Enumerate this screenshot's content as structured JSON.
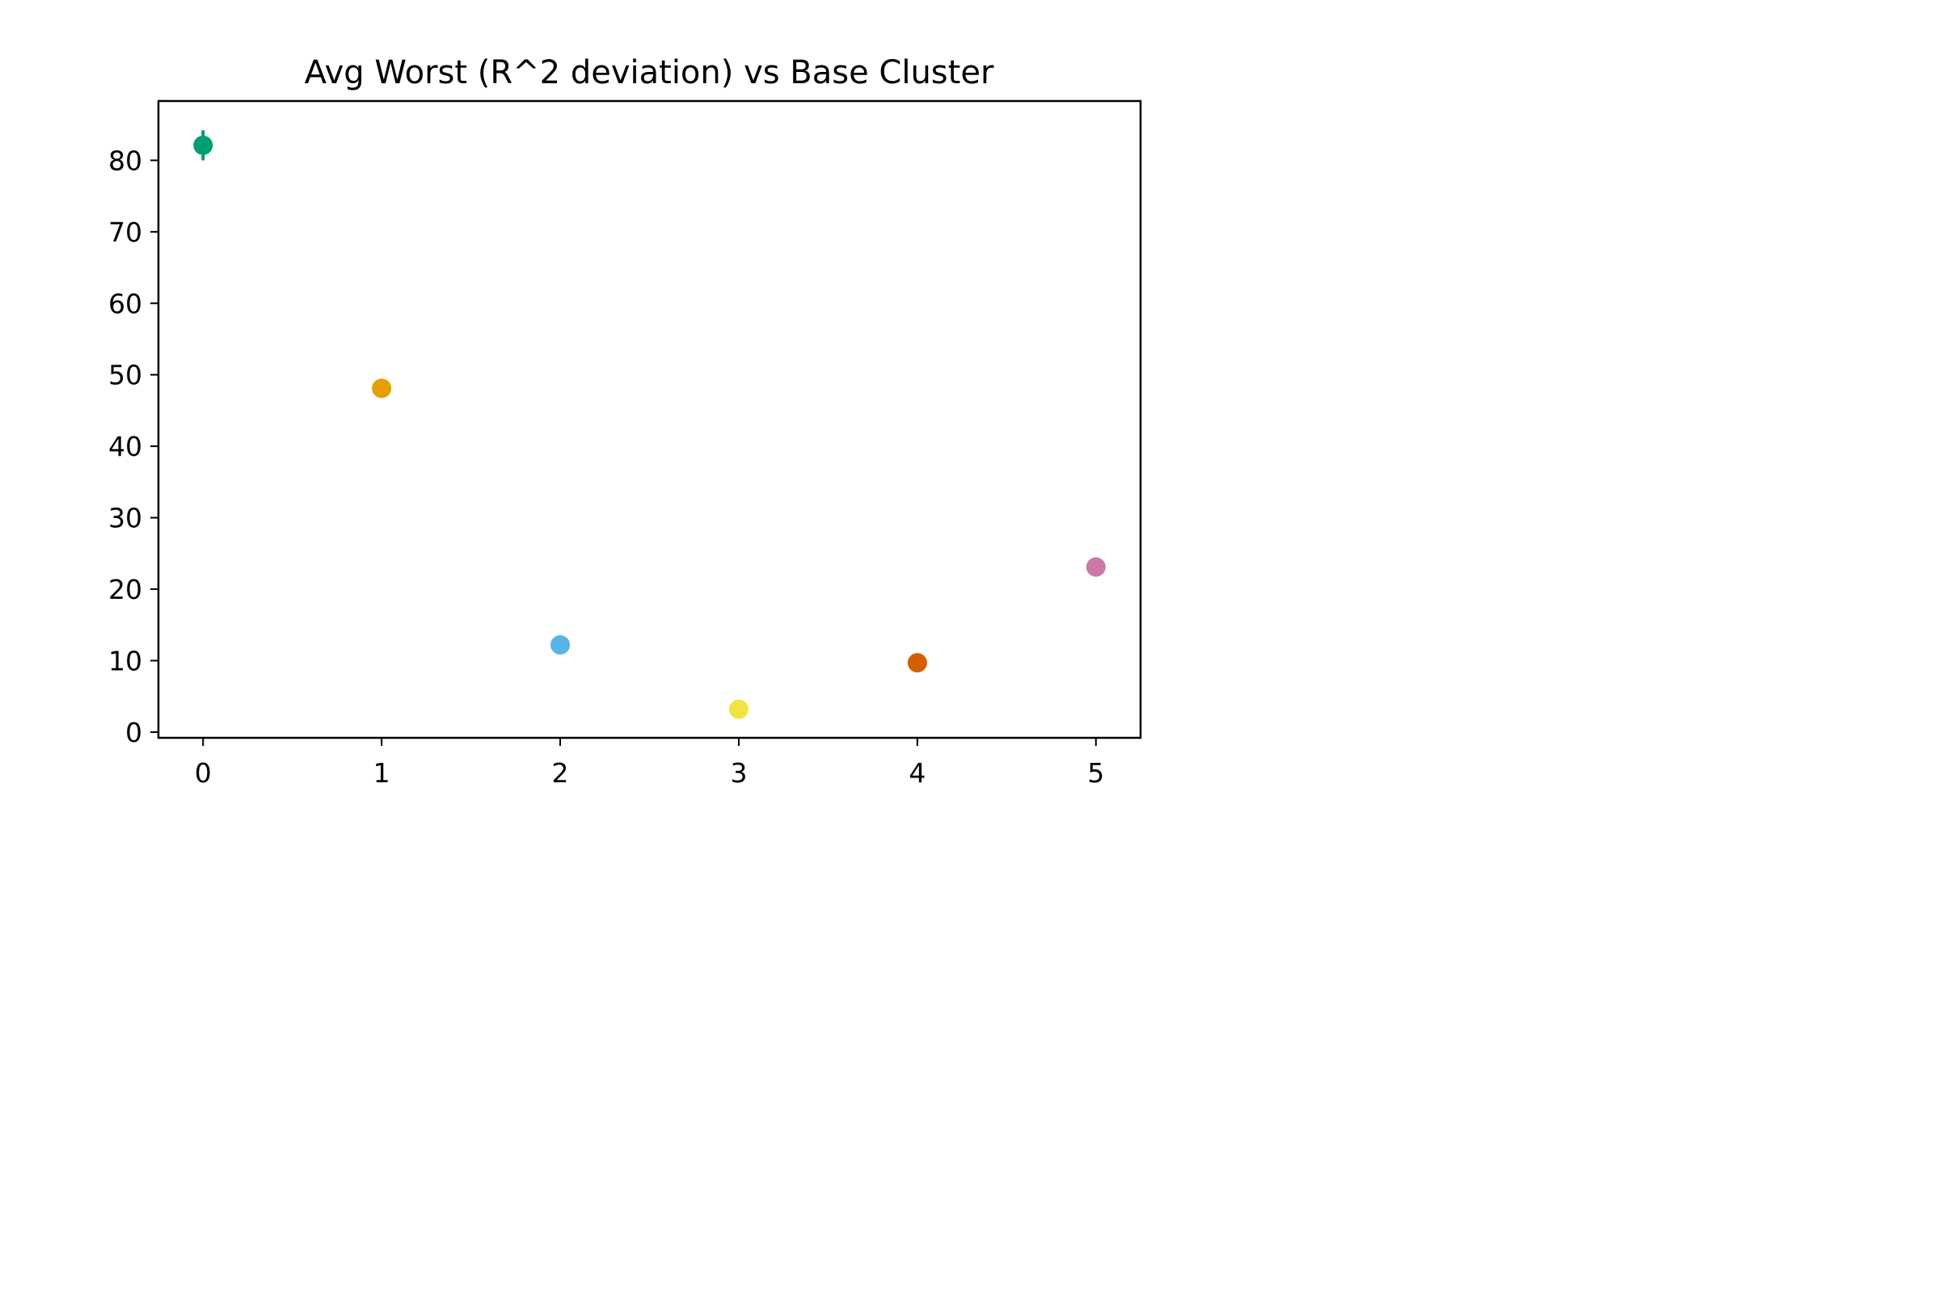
{
  "chart_data": {
    "type": "scatter",
    "title": "Avg Worst (R^2 deviation) vs Base Cluster",
    "xlabel": "",
    "ylabel": "",
    "xlim": [
      -0.25,
      5.25
    ],
    "ylim": [
      -0.8,
      88.3
    ],
    "x_ticks": [
      0,
      1,
      2,
      3,
      4,
      5
    ],
    "y_ticks": [
      0,
      10,
      20,
      30,
      40,
      50,
      60,
      70,
      80
    ],
    "x_tick_labels": [
      "0",
      "1",
      "2",
      "3",
      "4",
      "5"
    ],
    "y_tick_labels": [
      "0",
      "10",
      "20",
      "30",
      "40",
      "50",
      "60",
      "70",
      "80"
    ],
    "grid": false,
    "legend": "none",
    "points": [
      {
        "x": 0,
        "y": 82.1,
        "error": 2.1,
        "color": "#009e73"
      },
      {
        "x": 1,
        "y": 48.1,
        "error": 0,
        "color": "#e69f00"
      },
      {
        "x": 2,
        "y": 12.2,
        "error": 0,
        "color": "#56b4e9"
      },
      {
        "x": 3,
        "y": 3.2,
        "error": 0,
        "color": "#f0e442"
      },
      {
        "x": 4,
        "y": 9.7,
        "error": 0,
        "color": "#d55e00"
      },
      {
        "x": 5,
        "y": 23.1,
        "error": 0,
        "color": "#cc79a7"
      }
    ]
  }
}
